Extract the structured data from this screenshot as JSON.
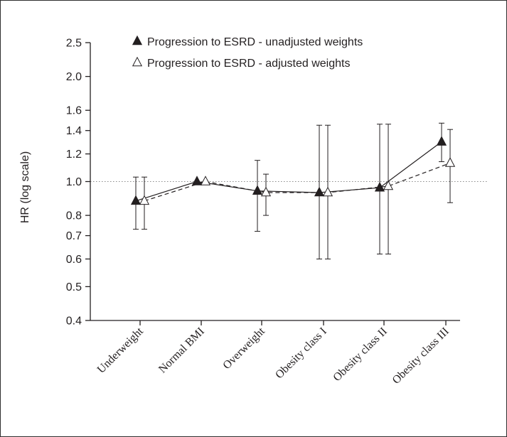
{
  "chart_data": {
    "type": "line",
    "title": "",
    "xlabel": "",
    "ylabel": "HR (log scale)",
    "y_scale": "log",
    "ylim": [
      0.4,
      2.5
    ],
    "yticks": [
      0.4,
      0.5,
      0.6,
      0.7,
      0.8,
      1.0,
      1.2,
      1.4,
      1.6,
      2.0,
      2.5
    ],
    "ytick_labels": [
      "0.4",
      "0.5",
      "0.6",
      "0.7",
      "0.8",
      "1.0",
      "1.2",
      "1.4",
      "1.6",
      "2.0",
      "2.5"
    ],
    "reference_line": 1.0,
    "reference_line_style": "dotted",
    "grid": false,
    "legend_position": "top",
    "categories": [
      "Underweight",
      "Normal BMI",
      "Overweight",
      "Obesity class I",
      "Obesity class II",
      "Obesity class III"
    ],
    "series": [
      {
        "name": "Progression to ESRD - unadjusted weights",
        "marker": "filled-triangle",
        "line_style": "solid",
        "values": [
          0.88,
          1.0,
          0.94,
          0.93,
          0.96,
          1.3
        ],
        "ci_low": [
          0.73,
          null,
          0.72,
          0.6,
          0.62,
          1.14
        ],
        "ci_high": [
          1.03,
          null,
          1.15,
          1.45,
          1.46,
          1.47
        ]
      },
      {
        "name": "Progression to ESRD - adjusted weights",
        "marker": "open-triangle",
        "line_style": "dashed",
        "values": [
          0.88,
          1.0,
          0.93,
          0.93,
          0.97,
          1.13
        ],
        "ci_low": [
          0.73,
          null,
          0.8,
          0.6,
          0.62,
          0.87
        ],
        "ci_high": [
          1.03,
          null,
          1.05,
          1.45,
          1.46,
          1.41
        ]
      }
    ]
  }
}
